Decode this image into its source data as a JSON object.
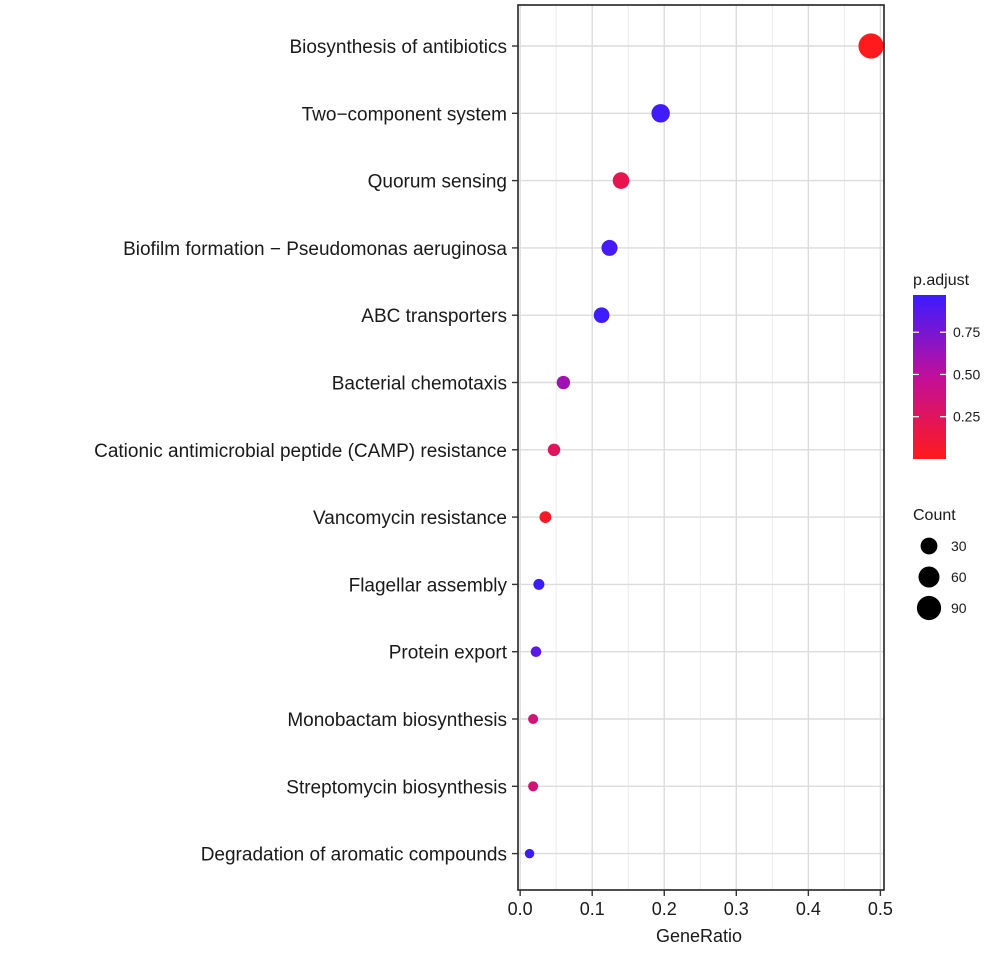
{
  "chart_data": {
    "type": "scatter",
    "title": "",
    "xlabel": "GeneRatio",
    "ylabel": "",
    "xlim": [
      -0.003,
      0.505
    ],
    "xticks": [
      0.0,
      0.1,
      0.2,
      0.3,
      0.4,
      0.5
    ],
    "xtick_labels": [
      "0.0",
      "0.1",
      "0.2",
      "0.3",
      "0.4",
      "0.5"
    ],
    "grid": true,
    "categories": [
      "Biosynthesis of antibiotics",
      "Two−component system",
      "Quorum sensing",
      "Biofilm formation − Pseudomonas aeruginosa",
      "ABC transporters",
      "Bacterial chemotaxis",
      "Cationic antimicrobial peptide (CAMP) resistance",
      "Vancomycin resistance",
      "Flagellar assembly",
      "Protein export",
      "Monobactam biosynthesis",
      "Streptomycin biosynthesis",
      "Degradation of aromatic compounds"
    ],
    "points": [
      {
        "term": "Biosynthesis of antibiotics",
        "gene_ratio": 0.487,
        "p_adjust": 0.01,
        "count": 95
      },
      {
        "term": "Two−component system",
        "gene_ratio": 0.195,
        "p_adjust": 0.95,
        "count": 38
      },
      {
        "term": "Quorum sensing",
        "gene_ratio": 0.14,
        "p_adjust": 0.2,
        "count": 27
      },
      {
        "term": "Biofilm formation − Pseudomonas aeruginosa",
        "gene_ratio": 0.124,
        "p_adjust": 0.93,
        "count": 24
      },
      {
        "term": "ABC transporters",
        "gene_ratio": 0.113,
        "p_adjust": 0.96,
        "count": 22
      },
      {
        "term": "Bacterial chemotaxis",
        "gene_ratio": 0.06,
        "p_adjust": 0.6,
        "count": 12
      },
      {
        "term": "Cationic antimicrobial peptide (CAMP) resistance",
        "gene_ratio": 0.047,
        "p_adjust": 0.25,
        "count": 9
      },
      {
        "term": "Vancomycin resistance",
        "gene_ratio": 0.035,
        "p_adjust": 0.05,
        "count": 7
      },
      {
        "term": "Flagellar assembly",
        "gene_ratio": 0.026,
        "p_adjust": 0.97,
        "count": 5
      },
      {
        "term": "Protein export",
        "gene_ratio": 0.022,
        "p_adjust": 0.85,
        "count": 4
      },
      {
        "term": "Monobactam biosynthesis",
        "gene_ratio": 0.018,
        "p_adjust": 0.35,
        "count": 3
      },
      {
        "term": "Streptomycin biosynthesis",
        "gene_ratio": 0.018,
        "p_adjust": 0.35,
        "count": 3
      },
      {
        "term": "Degradation of aromatic compounds",
        "gene_ratio": 0.013,
        "p_adjust": 0.98,
        "count": 2
      }
    ],
    "color_legend": {
      "title": "p.adjust",
      "range": [
        0.0,
        0.97
      ],
      "ticks": [
        0.25,
        0.5,
        0.75
      ],
      "tick_labels": [
        "0.25",
        "0.50",
        "0.75"
      ],
      "low_color": "#ff1a1a",
      "high_color": "#3b1cff"
    },
    "size_legend": {
      "title": "Count",
      "values": [
        30,
        60,
        90
      ],
      "labels": [
        "30",
        "60",
        "90"
      ],
      "color": "#000000"
    }
  }
}
